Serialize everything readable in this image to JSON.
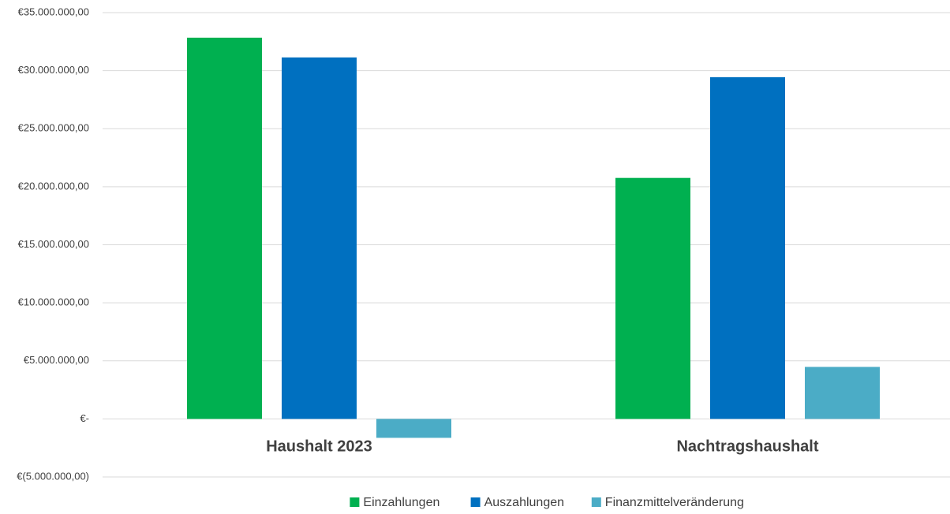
{
  "chart_data": {
    "type": "bar",
    "categories": [
      "Haushalt 2023",
      "Nachtragshaushalt"
    ],
    "series": [
      {
        "name": "Einzahlungen",
        "color": "#00b050",
        "values": [
          32840000,
          20760000
        ]
      },
      {
        "name": "Auszahlungen",
        "color": "#0070c0",
        "values": [
          31140000,
          29440000
        ]
      },
      {
        "name": "Finanzmittelveränderung",
        "color": "#4bacc6",
        "values": [
          -1630000,
          4480000
        ]
      }
    ],
    "ylim": [
      -5000000,
      35000000
    ],
    "yticks": [
      {
        "value": -5000000,
        "label": "€(5.000.000,00)"
      },
      {
        "value": 0,
        "label": "€-"
      },
      {
        "value": 5000000,
        "label": "€5.000.000,00"
      },
      {
        "value": 10000000,
        "label": "€10.000.000,00"
      },
      {
        "value": 15000000,
        "label": "€15.000.000,00"
      },
      {
        "value": 20000000,
        "label": "€20.000.000,00"
      },
      {
        "value": 25000000,
        "label": "€25.000.000,00"
      },
      {
        "value": 30000000,
        "label": "€30.000.000,00"
      },
      {
        "value": 35000000,
        "label": "€35.000.000,00"
      }
    ],
    "grid": true,
    "legend": "bottom"
  }
}
